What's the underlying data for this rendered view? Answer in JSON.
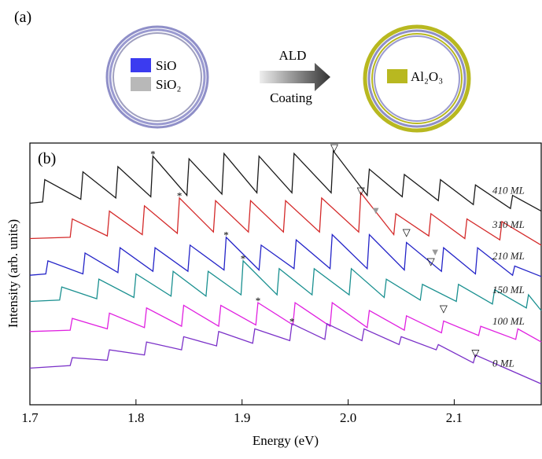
{
  "panel_a": {
    "label": "(a)",
    "legend": [
      "SiO",
      "SiO₂"
    ],
    "arrow_top": "ALD",
    "arrow_bottom": "Coating",
    "coating": "Al₂O₃"
  },
  "chart_data": {
    "type": "line",
    "panel_label": "(b)",
    "x_label": "Energy (eV)",
    "y_label": "Intensity (arb. units)",
    "xlim": [
      1.7,
      2.182
    ],
    "ylim": [
      0,
      10
    ],
    "xticks": [
      1.7,
      1.8,
      1.9,
      {
        "value": 2,
        "label": "2.0"
      },
      2.1
    ],
    "series": [
      {
        "name": "410 ML",
        "color": "#1a1a1a",
        "x": [
          1.7,
          1.712,
          1.714,
          1.748,
          1.75,
          1.781,
          1.783,
          1.814,
          1.816,
          1.848,
          1.85,
          1.881,
          1.883,
          1.914,
          1.916,
          1.947,
          1.949,
          1.984,
          1.986,
          2.018,
          2.02,
          2.051,
          2.053,
          2.085,
          2.087,
          2.118,
          2.12,
          2.153,
          2.155,
          2.182
        ],
        "values": [
          7.7,
          7.75,
          8.6,
          7.85,
          8.9,
          7.9,
          9.1,
          7.95,
          9.5,
          8.0,
          9.4,
          8.05,
          9.6,
          8.1,
          9.5,
          8.1,
          9.6,
          8.1,
          9.7,
          8.0,
          9.0,
          7.95,
          8.8,
          7.8,
          8.6,
          7.65,
          8.4,
          7.5,
          8.0,
          7.4
        ]
      },
      {
        "name": "310 ML",
        "color": "#d42a2a",
        "x": [
          1.7,
          1.738,
          1.74,
          1.773,
          1.775,
          1.806,
          1.808,
          1.839,
          1.841,
          1.873,
          1.875,
          1.906,
          1.908,
          1.939,
          1.941,
          1.973,
          1.975,
          2.01,
          2.012,
          2.043,
          2.045,
          2.076,
          2.078,
          2.11,
          2.112,
          2.143,
          2.145,
          2.182
        ],
        "values": [
          6.35,
          6.4,
          7.1,
          6.45,
          7.4,
          6.5,
          7.6,
          6.55,
          7.9,
          6.6,
          7.8,
          6.6,
          7.8,
          6.6,
          7.8,
          6.6,
          7.9,
          6.6,
          8.1,
          6.5,
          7.3,
          6.45,
          7.3,
          6.35,
          7.1,
          6.3,
          7.0,
          6.1
        ]
      },
      {
        "name": "210 ML",
        "color": "#2424c8",
        "x": [
          1.7,
          1.715,
          1.717,
          1.75,
          1.752,
          1.783,
          1.785,
          1.816,
          1.818,
          1.849,
          1.851,
          1.883,
          1.885,
          1.916,
          1.918,
          1.949,
          1.951,
          1.983,
          1.985,
          2.018,
          2.02,
          2.053,
          2.055,
          2.088,
          2.09,
          2.12,
          2.122,
          2.155,
          2.157,
          2.182
        ],
        "values": [
          4.95,
          5.0,
          5.5,
          5.0,
          5.8,
          5.05,
          6.0,
          5.1,
          6.0,
          5.1,
          6.1,
          5.15,
          6.4,
          5.15,
          6.1,
          5.2,
          6.3,
          5.2,
          6.5,
          5.2,
          6.5,
          5.15,
          6.2,
          5.1,
          6.0,
          5.0,
          6.0,
          4.95,
          5.3,
          4.9
        ]
      },
      {
        "name": "150 ML",
        "color": "#1a9090",
        "x": [
          1.7,
          1.728,
          1.73,
          1.763,
          1.765,
          1.798,
          1.8,
          1.833,
          1.835,
          1.866,
          1.868,
          1.899,
          1.901,
          1.933,
          1.935,
          1.966,
          1.968,
          2.001,
          2.003,
          2.034,
          2.036,
          2.068,
          2.07,
          2.102,
          2.104,
          2.136,
          2.138,
          2.168,
          2.17,
          2.182
        ],
        "values": [
          3.95,
          4.0,
          4.5,
          4.05,
          4.8,
          4.1,
          5.0,
          4.15,
          5.1,
          4.15,
          5.1,
          4.2,
          5.5,
          4.2,
          5.2,
          4.2,
          5.2,
          4.2,
          5.2,
          4.1,
          4.8,
          4.0,
          4.6,
          3.95,
          4.6,
          3.85,
          4.4,
          3.7,
          4.2,
          3.6
        ]
      },
      {
        "name": "100 ML",
        "color": "#e020e0",
        "x": [
          1.7,
          1.738,
          1.74,
          1.773,
          1.775,
          1.808,
          1.81,
          1.843,
          1.845,
          1.878,
          1.88,
          1.913,
          1.915,
          1.948,
          1.95,
          1.983,
          1.985,
          2.018,
          2.02,
          2.053,
          2.055,
          2.088,
          2.09,
          2.123,
          2.125,
          2.158,
          2.16,
          2.182
        ],
        "values": [
          2.8,
          2.85,
          3.3,
          2.9,
          3.5,
          2.95,
          3.7,
          3.0,
          3.8,
          3.0,
          3.8,
          3.05,
          3.9,
          3.05,
          3.9,
          3.0,
          3.9,
          2.95,
          3.6,
          2.85,
          3.4,
          2.75,
          3.2,
          2.65,
          3.0,
          2.5,
          2.9,
          2.4
        ]
      },
      {
        "name": "0 ML",
        "color": "#7a30c8",
        "x": [
          1.7,
          1.738,
          1.74,
          1.773,
          1.775,
          1.808,
          1.81,
          1.843,
          1.845,
          1.876,
          1.878,
          1.91,
          1.912,
          1.945,
          1.947,
          1.978,
          1.98,
          2.013,
          2.015,
          2.048,
          2.05,
          2.083,
          2.085,
          2.118,
          2.12,
          2.182
        ],
        "values": [
          1.4,
          1.5,
          1.8,
          1.7,
          2.1,
          1.9,
          2.4,
          2.1,
          2.6,
          2.25,
          2.8,
          2.35,
          2.9,
          2.45,
          3.1,
          2.5,
          3.1,
          2.45,
          2.9,
          2.3,
          2.6,
          2.1,
          2.3,
          1.6,
          1.9,
          0.8
        ]
      }
    ],
    "markers": [
      {
        "x": 1.816,
        "y": 9.6,
        "label": "*"
      },
      {
        "x": 1.841,
        "y": 8.0,
        "label": "*"
      },
      {
        "x": 1.885,
        "y": 6.5,
        "label": "*"
      },
      {
        "x": 1.901,
        "y": 5.6,
        "label": "*"
      },
      {
        "x": 1.915,
        "y": 4.0,
        "label": "*"
      },
      {
        "x": 1.947,
        "y": 3.2,
        "label": "*"
      },
      {
        "x": 1.987,
        "y": 9.85,
        "label": "▽"
      },
      {
        "x": 2.012,
        "y": 8.2,
        "label": "▽"
      },
      {
        "x": 2.055,
        "y": 6.6,
        "label": "▽"
      },
      {
        "x": 2.078,
        "y": 5.5,
        "label": "▽"
      },
      {
        "x": 2.09,
        "y": 3.7,
        "label": "▽"
      },
      {
        "x": 2.12,
        "y": 2.0,
        "label": "▽"
      },
      {
        "x": 2.026,
        "y": 7.45,
        "label": "▼"
      },
      {
        "x": 2.082,
        "y": 5.85,
        "label": "▼"
      }
    ]
  }
}
